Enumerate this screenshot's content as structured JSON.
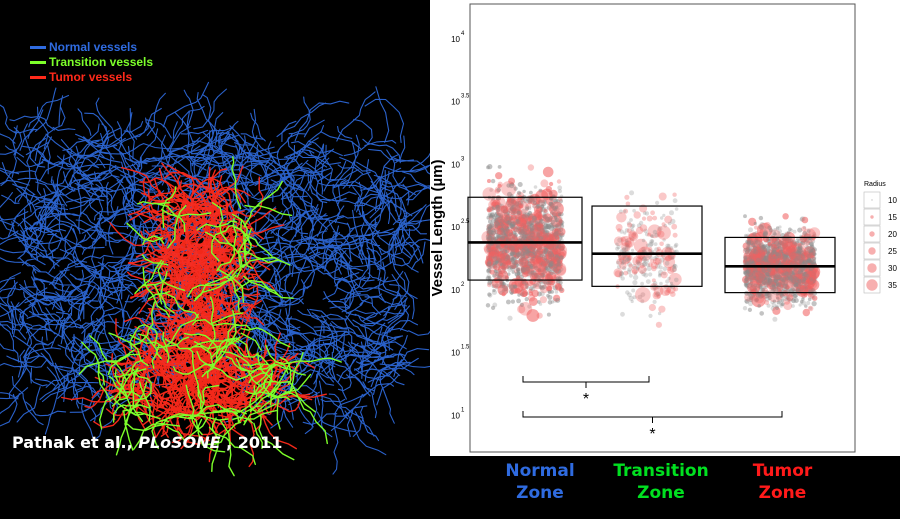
{
  "figure": {
    "citation": {
      "authors": "Pathak et al., ",
      "journal": "PLoSONE",
      "year": " , 2011"
    }
  },
  "vessel_legend": [
    {
      "label": "Normal vessels",
      "color": "#2f6be0"
    },
    {
      "label": "Transition vessels",
      "color": "#7dff2a"
    },
    {
      "label": "Tumor vessels",
      "color": "#ff2a1a"
    }
  ],
  "colors": {
    "normal": "#2f6be0",
    "transition": "#7dff2a",
    "tumor": "#ff2a1a",
    "point_gray": "#8c8c8c",
    "point_red": "#f06060"
  },
  "chart_data": {
    "type": "box",
    "ylabel": "Vessel Length (µm)",
    "y_scale": "log10",
    "ylim_log10": [
      0.7,
      4.27
    ],
    "y_ticks": [
      {
        "base": "10",
        "exp": "1",
        "log": 1.0
      },
      {
        "base": "10",
        "exp": "1.5",
        "log": 1.5
      },
      {
        "base": "10",
        "exp": "2",
        "log": 2.0
      },
      {
        "base": "10",
        "exp": "2.5",
        "log": 2.5
      },
      {
        "base": "10",
        "exp": "3",
        "log": 3.0
      },
      {
        "base": "10",
        "exp": "3.5",
        "log": 3.5
      },
      {
        "base": "10",
        "exp": "4",
        "log": 4.0
      }
    ],
    "categories": [
      {
        "line1": "Normal",
        "line2": "Zone",
        "color": "#2f6be0"
      },
      {
        "line1": "Transition",
        "line2": "Zone",
        "color": "#00e020"
      },
      {
        "line1": "Tumor",
        "line2": "Zone",
        "color": "#ff1a1a"
      }
    ],
    "boxes_log10": [
      {
        "q1": 2.07,
        "median": 2.37,
        "q3": 2.73,
        "spread": [
          0.9,
          4.1
        ]
      },
      {
        "q1": 2.02,
        "median": 2.28,
        "q3": 2.66,
        "spread": [
          0.78,
          3.65
        ]
      },
      {
        "q1": 1.97,
        "median": 2.18,
        "q3": 2.41,
        "spread": [
          0.85,
          3.62
        ]
      }
    ],
    "legend": {
      "title": "Radius",
      "sizes": [
        10,
        15,
        20,
        25,
        30,
        35
      ]
    },
    "significance": [
      {
        "groups": [
          0,
          1
        ],
        "label": "*"
      },
      {
        "groups": [
          0,
          2
        ],
        "label": "*"
      }
    ]
  }
}
